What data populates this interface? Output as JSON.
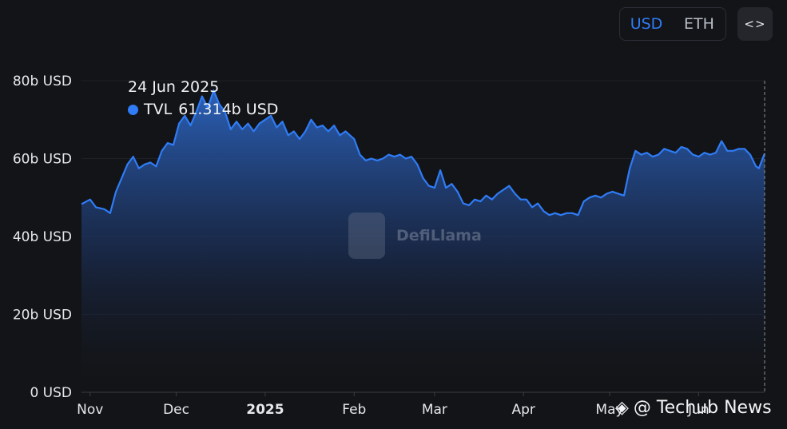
{
  "currency_toggle": {
    "options": [
      "USD",
      "ETH"
    ],
    "selected": "USD"
  },
  "embed_button": {
    "label": "<>"
  },
  "tooltip": {
    "date": "24 Jun 2025",
    "series": "TVL",
    "value": "61.314b USD"
  },
  "watermark": {
    "text": "DefiLlama"
  },
  "source_mark": {
    "text": "@ Techub News"
  },
  "colors": {
    "line": "#2f7cf6",
    "background": "#131417",
    "grid": "#1f2126"
  },
  "chart_data": {
    "type": "area",
    "title": "",
    "xlabel": "",
    "ylabel": "",
    "ylim": [
      0,
      80
    ],
    "y_ticks": [
      {
        "value": 0,
        "label": "0 USD"
      },
      {
        "value": 20,
        "label": "20b USD"
      },
      {
        "value": 40,
        "label": "40b USD"
      },
      {
        "value": 60,
        "label": "60b USD"
      },
      {
        "value": 80,
        "label": "80b USD"
      }
    ],
    "x_ticks": [
      {
        "date": "2024-11-01",
        "label": "Nov",
        "bold": false
      },
      {
        "date": "2024-12-01",
        "label": "Dec",
        "bold": false
      },
      {
        "date": "2025-01-01",
        "label": "2025",
        "bold": true
      },
      {
        "date": "2025-02-01",
        "label": "Feb",
        "bold": false
      },
      {
        "date": "2025-03-01",
        "label": "Mar",
        "bold": false
      },
      {
        "date": "2025-04-01",
        "label": "Apr",
        "bold": false
      },
      {
        "date": "2025-05-01",
        "label": "May",
        "bold": false
      },
      {
        "date": "2025-06-01",
        "label": "Jun",
        "bold": false
      }
    ],
    "x_range": [
      "2024-10-29",
      "2025-06-24"
    ],
    "grid": true,
    "series": [
      {
        "name": "TVL",
        "unit": "b USD",
        "points": [
          [
            "2024-10-29",
            48.3
          ],
          [
            "2024-11-01",
            49.5
          ],
          [
            "2024-11-03",
            47.5
          ],
          [
            "2024-11-06",
            47.0
          ],
          [
            "2024-11-08",
            46.0
          ],
          [
            "2024-11-10",
            51.5
          ],
          [
            "2024-11-12",
            55.0
          ],
          [
            "2024-11-14",
            58.5
          ],
          [
            "2024-11-16",
            60.5
          ],
          [
            "2024-11-18",
            57.5
          ],
          [
            "2024-11-20",
            58.5
          ],
          [
            "2024-11-22",
            59.0
          ],
          [
            "2024-11-24",
            58.0
          ],
          [
            "2024-11-26",
            62.0
          ],
          [
            "2024-11-28",
            64.0
          ],
          [
            "2024-11-30",
            63.5
          ],
          [
            "2024-12-02",
            69.0
          ],
          [
            "2024-12-04",
            71.0
          ],
          [
            "2024-12-06",
            68.5
          ],
          [
            "2024-12-08",
            72.0
          ],
          [
            "2024-12-10",
            76.0
          ],
          [
            "2024-12-12",
            73.0
          ],
          [
            "2024-12-14",
            77.5
          ],
          [
            "2024-12-16",
            74.0
          ],
          [
            "2024-12-18",
            72.0
          ],
          [
            "2024-12-20",
            67.5
          ],
          [
            "2024-12-22",
            69.5
          ],
          [
            "2024-12-24",
            67.5
          ],
          [
            "2024-12-26",
            69.0
          ],
          [
            "2024-12-28",
            67.0
          ],
          [
            "2024-12-30",
            69.0
          ],
          [
            "2025-01-01",
            70.0
          ],
          [
            "2025-01-03",
            71.0
          ],
          [
            "2025-01-05",
            68.0
          ],
          [
            "2025-01-07",
            69.5
          ],
          [
            "2025-01-09",
            66.0
          ],
          [
            "2025-01-11",
            67.0
          ],
          [
            "2025-01-13",
            65.0
          ],
          [
            "2025-01-15",
            67.0
          ],
          [
            "2025-01-17",
            70.0
          ],
          [
            "2025-01-19",
            68.0
          ],
          [
            "2025-01-21",
            68.5
          ],
          [
            "2025-01-23",
            67.0
          ],
          [
            "2025-01-25",
            68.5
          ],
          [
            "2025-01-27",
            66.0
          ],
          [
            "2025-01-29",
            67.0
          ],
          [
            "2025-02-01",
            65.0
          ],
          [
            "2025-02-03",
            61.0
          ],
          [
            "2025-02-05",
            59.5
          ],
          [
            "2025-02-07",
            60.0
          ],
          [
            "2025-02-09",
            59.5
          ],
          [
            "2025-02-11",
            60.0
          ],
          [
            "2025-02-13",
            61.0
          ],
          [
            "2025-02-15",
            60.5
          ],
          [
            "2025-02-17",
            61.0
          ],
          [
            "2025-02-19",
            60.0
          ],
          [
            "2025-02-21",
            60.5
          ],
          [
            "2025-02-23",
            58.5
          ],
          [
            "2025-02-25",
            55.0
          ],
          [
            "2025-02-27",
            53.0
          ],
          [
            "2025-03-01",
            52.5
          ],
          [
            "2025-03-03",
            57.0
          ],
          [
            "2025-03-05",
            52.5
          ],
          [
            "2025-03-07",
            53.5
          ],
          [
            "2025-03-09",
            51.5
          ],
          [
            "2025-03-11",
            48.5
          ],
          [
            "2025-03-13",
            48.0
          ],
          [
            "2025-03-15",
            49.5
          ],
          [
            "2025-03-17",
            49.0
          ],
          [
            "2025-03-19",
            50.5
          ],
          [
            "2025-03-21",
            49.5
          ],
          [
            "2025-03-23",
            51.0
          ],
          [
            "2025-03-25",
            52.0
          ],
          [
            "2025-03-27",
            53.0
          ],
          [
            "2025-03-29",
            51.0
          ],
          [
            "2025-03-31",
            49.5
          ],
          [
            "2025-04-02",
            49.5
          ],
          [
            "2025-04-04",
            47.5
          ],
          [
            "2025-04-06",
            48.5
          ],
          [
            "2025-04-08",
            46.5
          ],
          [
            "2025-04-10",
            45.5
          ],
          [
            "2025-04-12",
            46.0
          ],
          [
            "2025-04-14",
            45.5
          ],
          [
            "2025-04-16",
            46.0
          ],
          [
            "2025-04-18",
            46.0
          ],
          [
            "2025-04-20",
            45.5
          ],
          [
            "2025-04-22",
            49.0
          ],
          [
            "2025-04-24",
            50.0
          ],
          [
            "2025-04-26",
            50.5
          ],
          [
            "2025-04-28",
            50.0
          ],
          [
            "2025-04-30",
            51.0
          ],
          [
            "2025-05-02",
            51.5
          ],
          [
            "2025-05-04",
            51.0
          ],
          [
            "2025-05-06",
            50.5
          ],
          [
            "2025-05-08",
            57.5
          ],
          [
            "2025-05-10",
            62.0
          ],
          [
            "2025-05-12",
            61.0
          ],
          [
            "2025-05-14",
            61.5
          ],
          [
            "2025-05-16",
            60.5
          ],
          [
            "2025-05-18",
            61.0
          ],
          [
            "2025-05-20",
            62.5
          ],
          [
            "2025-05-22",
            62.0
          ],
          [
            "2025-05-24",
            61.5
          ],
          [
            "2025-05-26",
            63.0
          ],
          [
            "2025-05-28",
            62.5
          ],
          [
            "2025-05-30",
            61.0
          ],
          [
            "2025-06-01",
            60.5
          ],
          [
            "2025-06-03",
            61.5
          ],
          [
            "2025-06-05",
            61.0
          ],
          [
            "2025-06-07",
            61.5
          ],
          [
            "2025-06-09",
            64.5
          ],
          [
            "2025-06-11",
            62.0
          ],
          [
            "2025-06-13",
            62.0
          ],
          [
            "2025-06-15",
            62.5
          ],
          [
            "2025-06-17",
            62.5
          ],
          [
            "2025-06-19",
            61.0
          ],
          [
            "2025-06-21",
            58.0
          ],
          [
            "2025-06-22",
            57.5
          ],
          [
            "2025-06-24",
            61.3
          ]
        ]
      }
    ]
  }
}
